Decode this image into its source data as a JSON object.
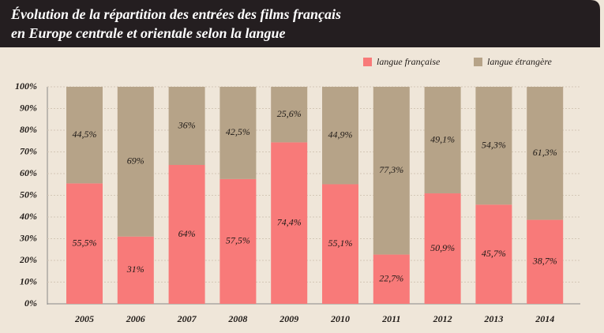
{
  "chart_data": {
    "type": "stacked_bar",
    "title": [
      "Évolution de la répartition des entrées des films français",
      "en Europe centrale et orientale selon la langue"
    ],
    "categories": [
      "2005",
      "2006",
      "2007",
      "2008",
      "2009",
      "2010",
      "2011",
      "2012",
      "2013",
      "2014"
    ],
    "series": [
      {
        "name": "langue française",
        "color": "#f87a79",
        "values": [
          55.5,
          31,
          64,
          57.5,
          74.4,
          55.1,
          22.7,
          50.9,
          45.7,
          38.7
        ],
        "value_labels": [
          "55,5%",
          "31%",
          "64%",
          "57,5%",
          "74,4%",
          "55,1%",
          "22,7%",
          "50,9%",
          "45,7%",
          "38,7%"
        ]
      },
      {
        "name": "langue étrangère",
        "color": "#b6a388",
        "values": [
          44.5,
          69,
          36,
          42.5,
          25.6,
          44.9,
          77.3,
          49.1,
          54.3,
          61.3
        ],
        "value_labels": [
          "44,5%",
          "69%",
          "36%",
          "42,5%",
          "25,6%",
          "44,9%",
          "77,3%",
          "49,1%",
          "54,3%",
          "61,3%"
        ]
      }
    ],
    "ylim": [
      0,
      100
    ],
    "yticks": [
      {
        "value": 0,
        "label": "0%"
      },
      {
        "value": 10,
        "label": "10%"
      },
      {
        "value": 20,
        "label": "20%"
      },
      {
        "value": 30,
        "label": "30%"
      },
      {
        "value": 40,
        "label": "40%"
      },
      {
        "value": 50,
        "label": "50%"
      },
      {
        "value": 60,
        "label": "60%"
      },
      {
        "value": 70,
        "label": "70%"
      },
      {
        "value": 80,
        "label": "80%"
      },
      {
        "value": 90,
        "label": "90%"
      },
      {
        "value": 100,
        "label": "100%"
      }
    ],
    "grid": true,
    "legend": "top-right"
  }
}
